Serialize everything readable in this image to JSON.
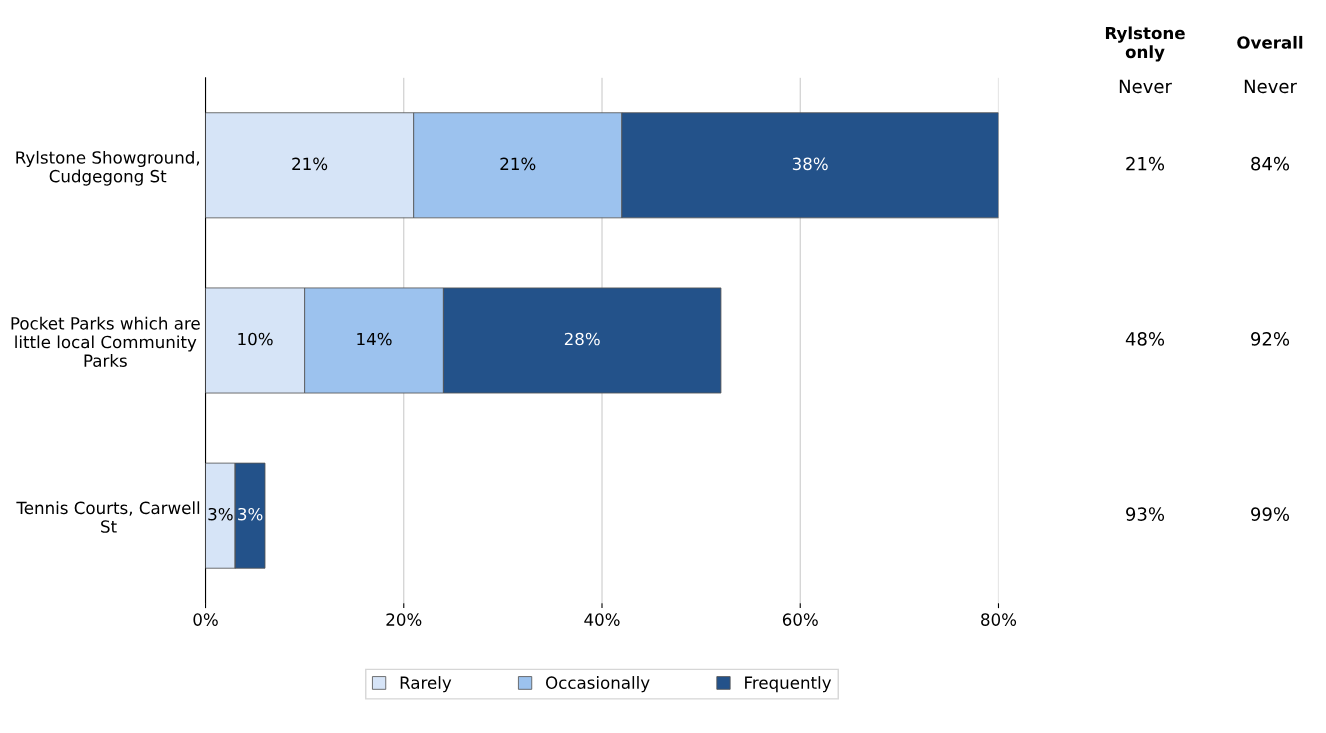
{
  "chart_data": {
    "type": "bar",
    "orientation": "horizontal",
    "stacked": true,
    "categories": [
      "Rylstone Showground, Cudgegong St",
      "Pocket Parks which are little local Community Parks",
      "Tennis Courts, Carwell St"
    ],
    "series": [
      {
        "name": "Rarely",
        "color": "#d6e4f7",
        "values": [
          21,
          10,
          3
        ],
        "value_labels": [
          "21%",
          "10%",
          "3%"
        ]
      },
      {
        "name": "Occasionally",
        "color": "#9cc2ee",
        "values": [
          21,
          14,
          0
        ],
        "value_labels": [
          "21%",
          "14%",
          null
        ]
      },
      {
        "name": "Frequently",
        "color": "#23528a",
        "values": [
          38,
          28,
          3
        ],
        "value_labels": [
          "38%",
          "28%",
          "3%"
        ]
      }
    ],
    "xlim": [
      0,
      80
    ],
    "xticks": [
      {
        "value": 0,
        "label": "0%"
      },
      {
        "value": 20,
        "label": "20%"
      },
      {
        "value": 40,
        "label": "40%"
      },
      {
        "value": 60,
        "label": "60%"
      },
      {
        "value": 80,
        "label": "80%"
      }
    ],
    "grid": "x",
    "legend": "bottom",
    "annotations": [
      "Rylstone\nonly",
      "Overall",
      "Never",
      "Never",
      "21%",
      "84%",
      "48%",
      "92%",
      "93%",
      "99%"
    ]
  }
}
